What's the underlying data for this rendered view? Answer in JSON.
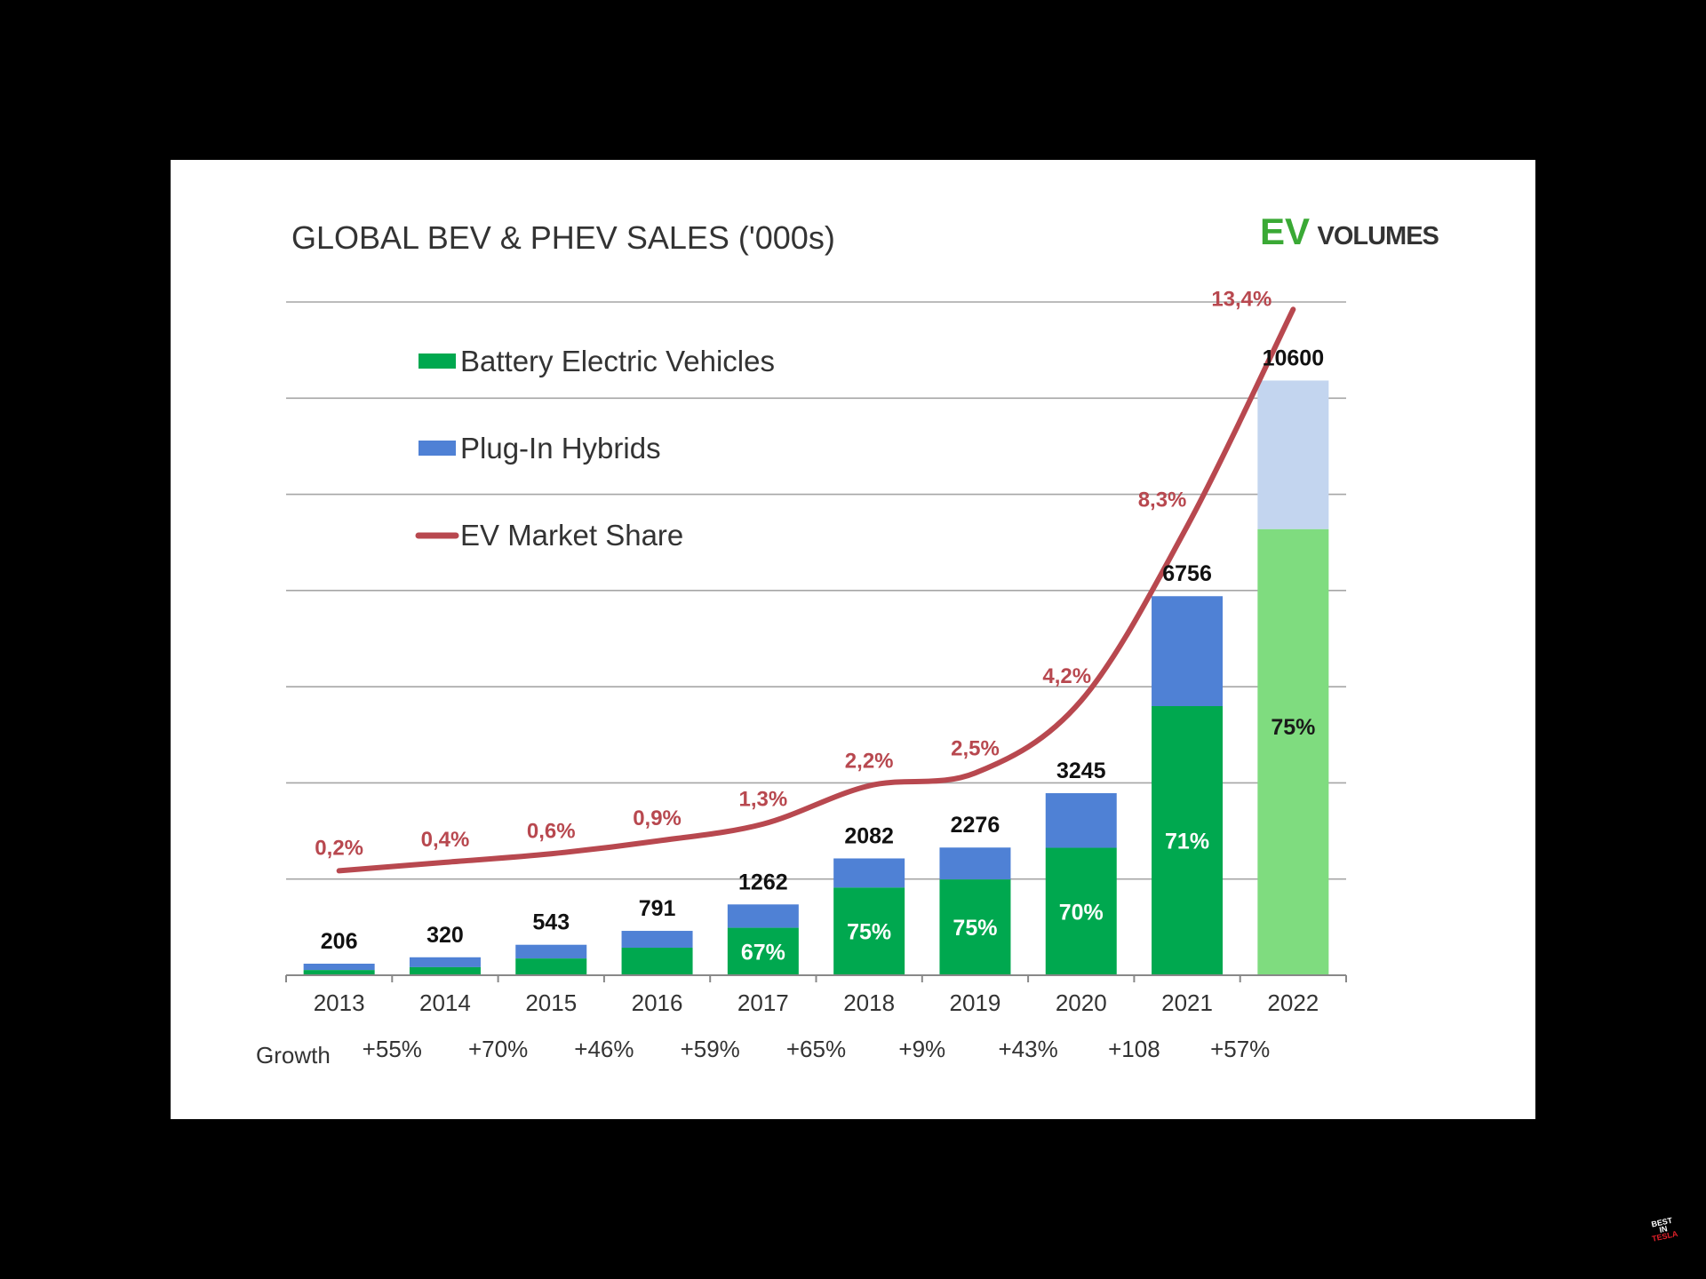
{
  "chart_data": {
    "type": "bar",
    "stacked": true,
    "title": "GLOBAL BEV & PHEV SALES ('000s)",
    "categories": [
      "2013",
      "2014",
      "2015",
      "2016",
      "2017",
      "2018",
      "2019",
      "2020",
      "2021",
      "2022"
    ],
    "totals": [
      206,
      320,
      543,
      791,
      1262,
      2082,
      2276,
      3245,
      6756,
      10600
    ],
    "total_labels": [
      "206",
      "320",
      "543",
      "791",
      "1262",
      "2082",
      "2276",
      "3245",
      "6756",
      "10600"
    ],
    "bev_share": [
      0.45,
      0.45,
      0.55,
      0.62,
      0.67,
      0.75,
      0.75,
      0.7,
      0.71,
      0.75
    ],
    "bev_share_labels": [
      "",
      "",
      "",
      "",
      "67%",
      "75%",
      "75%",
      "70%",
      "71%",
      "75%"
    ],
    "series": [
      {
        "name": "Battery Electric Vehicles",
        "color": "#00a84f",
        "color_forecast": "#7fdc7f"
      },
      {
        "name": "Plug-In Hybrids",
        "color": "#4f81d5",
        "color_forecast": "#c3d5ef"
      }
    ],
    "forecast_category": "2022",
    "line": {
      "name": "EV Market Share",
      "color": "#b8484f",
      "values": [
        0.2,
        0.4,
        0.6,
        0.9,
        1.3,
        2.2,
        2.5,
        4.2,
        8.3,
        13.4
      ],
      "labels": [
        "0,2%",
        "0,4%",
        "0,6%",
        "0,9%",
        "1,3%",
        "2,2%",
        "2,5%",
        "4,2%",
        "8,3%",
        "13,4%"
      ]
    },
    "growth_label": "Growth",
    "growth": [
      "+55%",
      "+70%",
      "+46%",
      "+59%",
      "+65%",
      "+9%",
      "+43%",
      "+108",
      "+57%"
    ],
    "ylim": [
      0,
      12000
    ],
    "grid": true,
    "legend_position": "top-left"
  },
  "branding": {
    "logo_ev": "EV",
    "logo_volumes": "VOLUMES",
    "logo_ev_color": "#3aa935",
    "watermark_lines": [
      "BEST",
      "IN",
      "TESLA"
    ]
  }
}
